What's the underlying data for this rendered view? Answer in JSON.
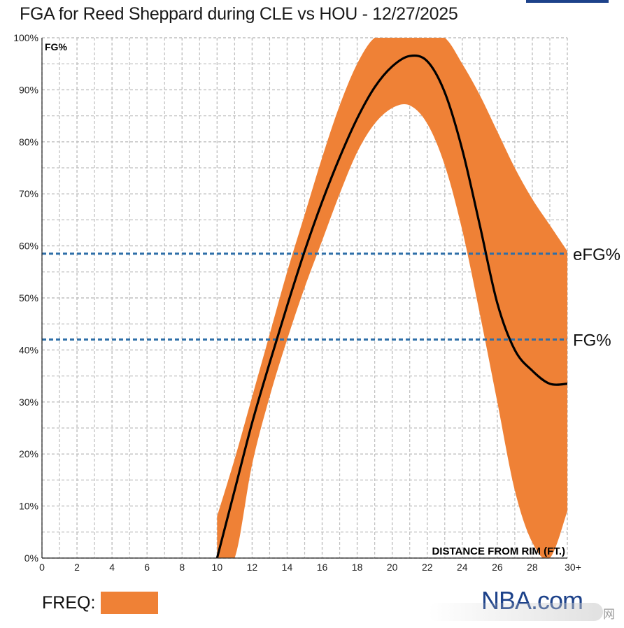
{
  "chart_data": {
    "type": "line",
    "title": "FGA for Reed Sheppard during CLE vs HOU - 12/27/2025",
    "ylabel": "FG%",
    "xlabel": "DISTANCE FROM RIM (FT.)",
    "xlim": [
      0,
      30
    ],
    "ylim": [
      0,
      100
    ],
    "x_ticks": [
      0,
      2,
      4,
      6,
      8,
      10,
      12,
      14,
      16,
      18,
      20,
      22,
      24,
      26,
      28,
      30
    ],
    "x_tick_labels": [
      "0",
      "2",
      "4",
      "6",
      "8",
      "10",
      "12",
      "14",
      "16",
      "18",
      "20",
      "22",
      "24",
      "26",
      "28",
      "30+"
    ],
    "y_ticks": [
      0,
      10,
      20,
      30,
      40,
      50,
      60,
      70,
      80,
      90,
      100
    ],
    "y_tick_labels": [
      "0%",
      "10%",
      "20%",
      "30%",
      "40%",
      "50%",
      "60%",
      "70%",
      "80%",
      "90%",
      "100%"
    ],
    "grid": true,
    "series": [
      {
        "name": "FG% by distance",
        "x": [
          10,
          11,
          12,
          13,
          14,
          15,
          16,
          17,
          18,
          19,
          20,
          21,
          22,
          23,
          24,
          25,
          26,
          27,
          28,
          29,
          30
        ],
        "values": [
          0,
          13,
          26,
          37.5,
          48.5,
          59,
          68.5,
          77,
          84.5,
          90.5,
          94.5,
          96.5,
          95.5,
          89.5,
          78.5,
          64,
          49,
          40,
          36,
          33.5,
          33.5
        ]
      }
    ],
    "band": {
      "name": "FREQ",
      "x": [
        10,
        11,
        12,
        13,
        14,
        15,
        16,
        17,
        18,
        19,
        20,
        21,
        22,
        23,
        24,
        25,
        26,
        27,
        28,
        29,
        30
      ],
      "upper": [
        8,
        19,
        31,
        43,
        55,
        66,
        77,
        87,
        95,
        100,
        100,
        100,
        100,
        100,
        95,
        89,
        82,
        75,
        69,
        64,
        59
      ],
      "lower": [
        0,
        0,
        18,
        31,
        42,
        52,
        61,
        70,
        78,
        83.5,
        86.5,
        87,
        83.5,
        75.5,
        63,
        47,
        30,
        13,
        3,
        0,
        9
      ]
    },
    "reference_lines": [
      {
        "name": "eFG%",
        "label": "eFG%",
        "value": 58.5
      },
      {
        "name": "FG%",
        "label": "FG%",
        "value": 42
      }
    ],
    "colors": {
      "band": "#ef8136",
      "line": "#000000",
      "reference": "#2e6fa8",
      "grid": "#bfbfbf"
    }
  },
  "legend": {
    "label": "FREQ:",
    "color": "#ef8136"
  },
  "brand": {
    "text": "NBA.com"
  },
  "watermark": {
    "text": "网"
  }
}
